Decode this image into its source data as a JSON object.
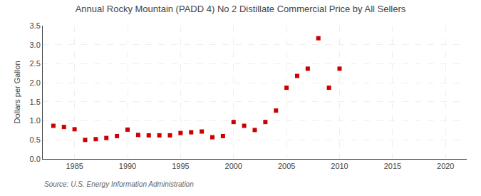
{
  "chart_data": {
    "type": "scatter",
    "title": "Annual Rocky Mountain (PADD 4) No 2 Distillate Commercial Price by All Sellers",
    "ylabel": "Dollars per Gallon",
    "annotations": [
      "Source: U.S. Energy Information Administration"
    ],
    "x": [
      1983,
      1984,
      1985,
      1986,
      1987,
      1988,
      1989,
      1990,
      1991,
      1992,
      1993,
      1994,
      1995,
      1996,
      1997,
      1998,
      1999,
      2000,
      2001,
      2002,
      2003,
      2004,
      2005,
      2006,
      2007,
      2008,
      2009,
      2010
    ],
    "values": [
      0.87,
      0.84,
      0.78,
      0.5,
      0.52,
      0.55,
      0.6,
      0.77,
      0.63,
      0.62,
      0.62,
      0.62,
      0.68,
      0.7,
      0.72,
      0.57,
      0.6,
      0.97,
      0.87,
      0.76,
      0.97,
      1.27,
      1.87,
      2.18,
      2.37,
      3.17,
      1.87,
      2.37
    ],
    "color": "#cc0000",
    "marker": "square",
    "xlim": [
      1982,
      2022
    ],
    "ylim": [
      0.0,
      3.5
    ],
    "xticks": [
      1985,
      1990,
      1995,
      2000,
      2005,
      2010,
      2015,
      2020
    ],
    "yticks": [
      {
        "value": 0,
        "label": "0.0"
      },
      0.5,
      {
        "value": 1,
        "label": "1.0"
      },
      1.5,
      {
        "value": 2,
        "label": "2.0"
      },
      2.5,
      {
        "value": 3,
        "label": "3.0"
      },
      3.5
    ],
    "grid": true
  }
}
